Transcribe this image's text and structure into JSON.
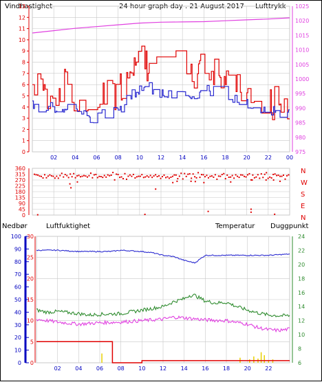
{
  "colors": {
    "red": "#e00000",
    "blue": "#2a2ad0",
    "magenta": "#e040e0",
    "green": "#2e8b2e",
    "yellow": "#e8d000",
    "navy": "#0000c0",
    "grid": "#c8c8c8",
    "axis": "#000000"
  },
  "top_labels": {
    "wind": "Vindhastighet",
    "title": "24 hour graph day . 21 August 2017",
    "pressure": "Lufttrykk"
  },
  "bottom_labels": {
    "precip": "Nedbør",
    "humidity": "Luftfuktighet",
    "temperature": "Temperatur",
    "dewpoint": "Duggpunkt"
  },
  "direction_letters": [
    "N",
    "W",
    "S",
    "E",
    "N"
  ],
  "chart_data": [
    {
      "type": "line",
      "name": "wind-and-pressure",
      "x_ticks": [
        "02",
        "04",
        "06",
        "08",
        "10",
        "12",
        "14",
        "16",
        "18",
        "20",
        "22",
        "00"
      ],
      "xlim": [
        0,
        24
      ],
      "left_ylim": [
        0,
        13
      ],
      "left_ticks": [
        0,
        1,
        2,
        3,
        4,
        5,
        6,
        7,
        8,
        9,
        10,
        11,
        12,
        13
      ],
      "right_ylim": [
        975,
        1025
      ],
      "right_ticks": [
        975,
        980,
        985,
        990,
        995,
        1000,
        1005,
        1010,
        1015,
        1020,
        1025
      ],
      "series": [
        {
          "axis": "left",
          "color": "#e00000",
          "x": [
            0,
            1,
            2,
            3,
            4,
            5,
            6,
            7,
            8,
            9,
            9.5,
            10,
            11,
            12,
            13,
            14,
            15,
            16,
            17,
            18,
            19,
            20,
            21,
            22,
            23,
            24
          ],
          "y": [
            6,
            5.5,
            5,
            6,
            5,
            4.5,
            4.5,
            4.8,
            5.5,
            7.5,
            8,
            8.2,
            7.5,
            7,
            7.5,
            7.5,
            7.2,
            7.5,
            7.5,
            6.5,
            6.3,
            5,
            4.8,
            4.3,
            4.3,
            4.6
          ]
        },
        {
          "axis": "left",
          "color": "#2a2ad0",
          "x": [
            0,
            1,
            2,
            3,
            4,
            5,
            6,
            7,
            8,
            9,
            10,
            11,
            12,
            13,
            14,
            15,
            16,
            17,
            18,
            19,
            20,
            21,
            22,
            23,
            24
          ],
          "y": [
            4.4,
            4,
            3.8,
            4,
            3.5,
            3.3,
            3.1,
            3.3,
            3.8,
            5,
            5.8,
            5.7,
            5.2,
            5,
            5,
            5.2,
            5.4,
            5.5,
            5.3,
            4.8,
            4.4,
            4,
            3.8,
            3.5,
            3.2
          ]
        },
        {
          "axis": "right",
          "color": "#e040e0",
          "x": [
            0,
            2,
            4,
            6,
            8,
            10,
            12,
            14,
            16,
            18,
            20,
            22,
            24
          ],
          "y": [
            1015.8,
            1016.6,
            1017.4,
            1018.0,
            1018.6,
            1019.2,
            1019.5,
            1019.6,
            1019.7,
            1020.0,
            1020.3,
            1020.6,
            1021.0
          ]
        }
      ]
    },
    {
      "type": "scatter",
      "name": "wind-direction",
      "x_ticks": [
        "02",
        "04",
        "06",
        "08",
        "10",
        "12",
        "14",
        "16",
        "18",
        "20",
        "22",
        "00"
      ],
      "xlim": [
        0,
        24
      ],
      "ylim": [
        0,
        360
      ],
      "y_ticks": [
        0,
        45,
        90,
        135,
        180,
        225,
        270,
        315,
        360
      ],
      "points_main": {
        "x_start": 0.2,
        "x_end": 23.9,
        "count": 150,
        "y_values": [
          300,
          305,
          295,
          310,
          290,
          300,
          315,
          285,
          305,
          298
        ]
      },
      "outliers": [
        {
          "x": 3.5,
          "y": 240
        },
        {
          "x": 3.6,
          "y": 210
        },
        {
          "x": 4.2,
          "y": 255
        },
        {
          "x": 11.5,
          "y": 200
        },
        {
          "x": 13.1,
          "y": 250
        },
        {
          "x": 13.5,
          "y": 260
        },
        {
          "x": 14.8,
          "y": 260
        },
        {
          "x": 15.2,
          "y": 258
        },
        {
          "x": 16.0,
          "y": 250
        },
        {
          "x": 18.5,
          "y": 255
        },
        {
          "x": 20.5,
          "y": 270
        },
        {
          "x": 21.8,
          "y": 270
        },
        {
          "x": 22.5,
          "y": 270
        },
        {
          "x": 23.1,
          "y": 260
        }
      ],
      "low_marks": [
        {
          "x": 0.5,
          "y": 2
        },
        {
          "x": 10.5,
          "y": 5
        },
        {
          "x": 16.4,
          "y": 28
        },
        {
          "x": 20.4,
          "y": 45
        },
        {
          "x": 20.4,
          "y": 22
        },
        {
          "x": 22.6,
          "y": 6
        }
      ]
    },
    {
      "type": "line",
      "name": "humidity-temperature-precip",
      "x_ticks": [
        "02",
        "04",
        "06",
        "08",
        "10",
        "12",
        "14",
        "16",
        "18",
        "20",
        "22"
      ],
      "xlim": [
        0,
        24
      ],
      "humidity_ticks": [
        0,
        10,
        20,
        30,
        40,
        50,
        60,
        70,
        80,
        90,
        100
      ],
      "precip_ticks": [
        0,
        5,
        10,
        15,
        20,
        25,
        30
      ],
      "temp_ticks": [
        6,
        8,
        10,
        12,
        14,
        16,
        18,
        20,
        22,
        24
      ],
      "humidity_ylim": [
        0,
        100
      ],
      "precip_ylim": [
        0,
        30
      ],
      "temp_ylim": [
        6,
        24
      ],
      "series": [
        {
          "axis": "humidity",
          "color": "#2a2ad0",
          "x": [
            0,
            1,
            2,
            4,
            6,
            7,
            8,
            10,
            11,
            12,
            13,
            14,
            14.5,
            15,
            15.5,
            16,
            18,
            20,
            22,
            24
          ],
          "y": [
            89,
            89,
            89,
            88,
            88,
            88,
            89,
            88,
            87,
            85,
            84,
            81,
            80,
            79,
            82,
            85,
            85,
            85,
            85,
            86
          ]
        },
        {
          "axis": "temp",
          "color": "#2e8b2e",
          "x": [
            0,
            1,
            2,
            4,
            5,
            6,
            8,
            10,
            12,
            13,
            14,
            14.5,
            15,
            16,
            17,
            18,
            19,
            20,
            21,
            22,
            23,
            24
          ],
          "y": [
            13.5,
            13.2,
            13.3,
            13,
            12.8,
            12.9,
            13.0,
            13.5,
            14.0,
            14.7,
            15.1,
            15.6,
            15.6,
            14.8,
            14.5,
            14.6,
            14,
            13.5,
            13.1,
            12.8,
            12.7,
            12.7
          ]
        },
        {
          "axis": "temp",
          "color": "#e040e0",
          "x": [
            0,
            2,
            4,
            6,
            8,
            10,
            12,
            13,
            14,
            16,
            18,
            20,
            21,
            22,
            23,
            24
          ],
          "y": [
            12.2,
            11.8,
            11.5,
            11.7,
            11.8,
            12.0,
            12.2,
            12.5,
            12.4,
            12.1,
            12.0,
            11.5,
            11.0,
            10.7,
            10.6,
            10.8
          ]
        },
        {
          "axis": "precip",
          "color": "#e00000",
          "step": true,
          "x": [
            0,
            7.2,
            7.2,
            10.0,
            10.0,
            24
          ],
          "y": [
            5,
            5,
            0,
            0,
            0.5,
            0.5
          ]
        }
      ],
      "precip_bars_color": "#e8d000",
      "precip_bars": [
        {
          "x": 6.2,
          "y": 2.2
        },
        {
          "x": 19.3,
          "y": 1.2
        },
        {
          "x": 20.2,
          "y": 0.8
        },
        {
          "x": 20.6,
          "y": 1.5
        },
        {
          "x": 21.0,
          "y": 1.0
        },
        {
          "x": 21.3,
          "y": 2.5
        },
        {
          "x": 21.6,
          "y": 1.8
        },
        {
          "x": 22.0,
          "y": 0.6
        },
        {
          "x": 22.4,
          "y": 0.8
        }
      ]
    }
  ]
}
